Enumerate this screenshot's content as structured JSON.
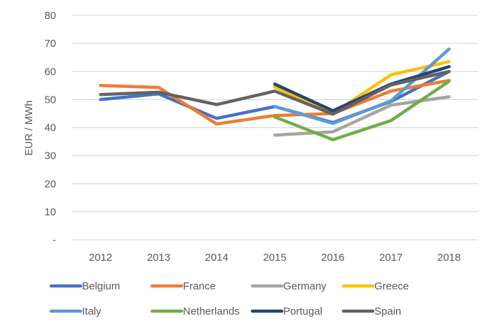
{
  "chart_data": {
    "type": "line",
    "title": "",
    "xlabel": "",
    "ylabel": "EUR / MWh",
    "ylim": [
      0,
      80
    ],
    "yticks": [
      0,
      10,
      20,
      30,
      40,
      50,
      60,
      70,
      80
    ],
    "ytick_labels": [
      "-",
      "10",
      "20",
      "30",
      "40",
      "50",
      "60",
      "70",
      "80"
    ],
    "grid": true,
    "legend_position": "bottom",
    "categories": [
      "2012",
      "2013",
      "2014",
      "2015",
      "2016",
      "2017",
      "2018"
    ],
    "series": [
      {
        "name": "Belgium",
        "color": "#4472C4",
        "values": [
          50.0,
          52.0,
          43.3,
          47.5,
          41.8,
          49.3,
          60.0
        ]
      },
      {
        "name": "France",
        "color": "#ED7D31",
        "values": [
          55.0,
          54.3,
          41.3,
          44.3,
          45.0,
          53.0,
          56.8
        ]
      },
      {
        "name": "Germany",
        "color": "#A5A5A5",
        "values": [
          null,
          null,
          null,
          37.3,
          38.5,
          48.0,
          51.0
        ]
      },
      {
        "name": "Greece",
        "color": "#FFC000",
        "values": [
          null,
          null,
          null,
          54.5,
          45.0,
          58.8,
          63.5
        ]
      },
      {
        "name": "Italy",
        "color": "#5B9BD5",
        "values": [
          null,
          null,
          null,
          47.5,
          41.5,
          49.5,
          68.0
        ]
      },
      {
        "name": "Netherlands",
        "color": "#70AD47",
        "values": [
          null,
          null,
          null,
          43.8,
          35.7,
          42.5,
          56.5
        ]
      },
      {
        "name": "Portugal",
        "color": "#264478",
        "values": [
          null,
          null,
          null,
          55.5,
          46.0,
          55.5,
          61.7
        ]
      },
      {
        "name": "Spain",
        "color": "#636363",
        "values": [
          51.8,
          52.6,
          48.2,
          53.0,
          44.8,
          55.2,
          60.0
        ]
      }
    ]
  }
}
